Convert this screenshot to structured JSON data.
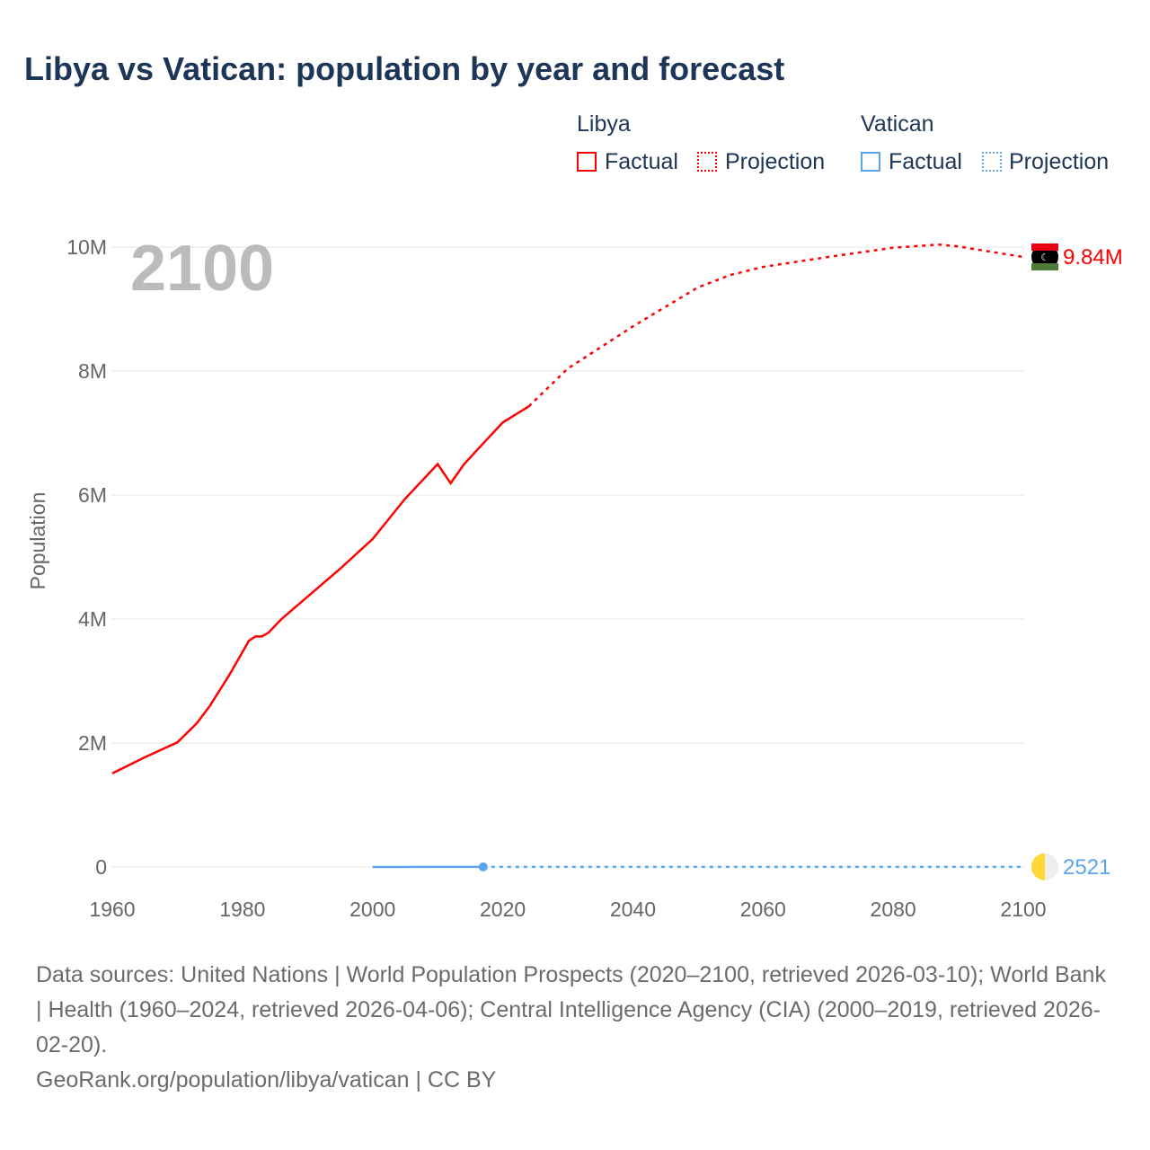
{
  "title": "Libya vs Vatican: population by year and forecast",
  "legend": {
    "groups": [
      {
        "name": "Libya",
        "factual": "Factual",
        "projection": "Projection",
        "color": "#ff0000"
      },
      {
        "name": "Vatican",
        "factual": "Factual",
        "projection": "Projection",
        "color": "#5aa5ee"
      }
    ]
  },
  "footer": {
    "sources": "Data sources: United Nations | World Population Prospects (2020–2100, retrieved 2026-03-10); World Bank | Health (1960–2024, retrieved 2026-04-06); Central Intelligence Agency (CIA) (2000–2019, retrieved 2026-02-20).",
    "link": "GeoRank.org/population/libya/vatican | CC BY"
  },
  "chart_data": {
    "type": "line",
    "ylabel": "Population",
    "xlim": [
      1960,
      2100
    ],
    "ylim": [
      0,
      10000000
    ],
    "year_overlay": "2100",
    "xticks": [
      "1960",
      "1980",
      "2000",
      "2020",
      "2040",
      "2060",
      "2080",
      "2100"
    ],
    "yticks": [
      {
        "v": 0,
        "label": "0"
      },
      {
        "v": 2000000,
        "label": "2M"
      },
      {
        "v": 4000000,
        "label": "4M"
      },
      {
        "v": 6000000,
        "label": "6M"
      },
      {
        "v": 8000000,
        "label": "8M"
      },
      {
        "v": 10000000,
        "label": "10M"
      }
    ],
    "series": [
      {
        "name": "Libya",
        "color": "#ff0000",
        "end_label": "9.84M",
        "factual": [
          [
            1960,
            1510000
          ],
          [
            1965,
            1770000
          ],
          [
            1970,
            2010000
          ],
          [
            1973,
            2320000
          ],
          [
            1975,
            2600000
          ],
          [
            1978,
            3100000
          ],
          [
            1981,
            3650000
          ],
          [
            1982,
            3720000
          ],
          [
            1983,
            3720000
          ],
          [
            1984,
            3780000
          ],
          [
            1986,
            4000000
          ],
          [
            1990,
            4360000
          ],
          [
            1995,
            4810000
          ],
          [
            2000,
            5290000
          ],
          [
            2005,
            5940000
          ],
          [
            2010,
            6500000
          ],
          [
            2012,
            6190000
          ],
          [
            2014,
            6490000
          ],
          [
            2016,
            6720000
          ],
          [
            2020,
            7170000
          ],
          [
            2024,
            7430000
          ]
        ],
        "projection": [
          [
            2024,
            7430000
          ],
          [
            2030,
            8040000
          ],
          [
            2040,
            8720000
          ],
          [
            2050,
            9350000
          ],
          [
            2055,
            9550000
          ],
          [
            2060,
            9680000
          ],
          [
            2070,
            9840000
          ],
          [
            2080,
            9990000
          ],
          [
            2087,
            10040000
          ],
          [
            2090,
            10010000
          ],
          [
            2100,
            9840000
          ]
        ]
      },
      {
        "name": "Vatican",
        "color": "#5aa5ee",
        "end_label": "2521",
        "factual": [
          [
            2000,
            800
          ],
          [
            2017,
            1000
          ]
        ],
        "projection": [
          [
            2017,
            1000
          ],
          [
            2100,
            2521
          ]
        ]
      }
    ]
  }
}
